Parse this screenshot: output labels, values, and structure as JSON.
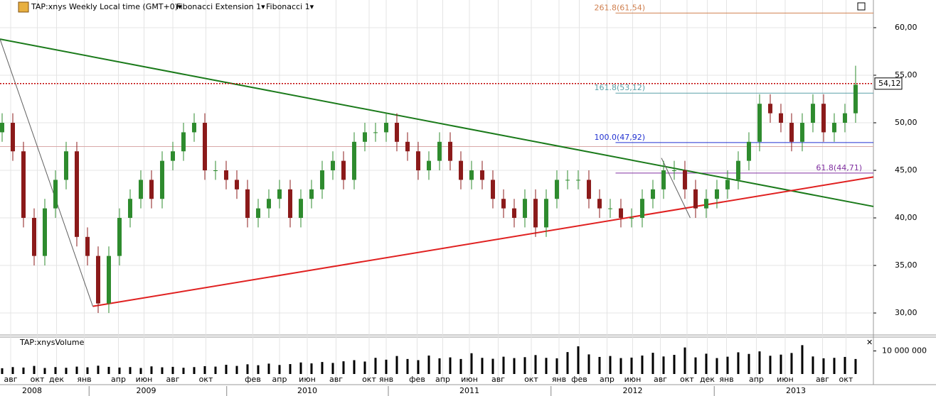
{
  "chart_data": {
    "type": "candlestick",
    "title": "TAP:xnys Weekly Local time (GMT+0)▾",
    "indicators": [
      "Fibonacci Extension 1▾",
      "Fibonacci 1▾"
    ],
    "volume_title": "TAP:xnysVolume",
    "xlim": [
      -0.2,
      81.67
    ],
    "ylim": [
      27.69,
      62.91
    ],
    "yticks": [
      {
        "value": 30,
        "label": "30,00"
      },
      {
        "value": 35,
        "label": "35,00"
      },
      {
        "value": 40,
        "label": "40,00"
      },
      {
        "value": 45,
        "label": "45,00"
      },
      {
        "value": 50,
        "label": "50,00"
      },
      {
        "value": 55,
        "label": "55,00"
      },
      {
        "value": 60,
        "label": "60,00"
      }
    ],
    "xticks": [
      {
        "value": 0.8,
        "label": "авг"
      },
      {
        "value": 3.3,
        "label": "окт"
      },
      {
        "value": 5.1,
        "label": "дек"
      },
      {
        "value": 7.7,
        "label": "янв"
      },
      {
        "value": 10.9,
        "label": "апр"
      },
      {
        "value": 13.3,
        "label": "июн"
      },
      {
        "value": 16,
        "label": "авг"
      },
      {
        "value": 19.1,
        "label": "окт"
      },
      {
        "value": 23.5,
        "label": "фев"
      },
      {
        "value": 26,
        "label": "апр"
      },
      {
        "value": 28.6,
        "label": "июн"
      },
      {
        "value": 31.3,
        "label": "авг"
      },
      {
        "value": 34.4,
        "label": "окт"
      },
      {
        "value": 36,
        "label": "янв"
      },
      {
        "value": 38.9,
        "label": "фев"
      },
      {
        "value": 41.3,
        "label": "апр"
      },
      {
        "value": 43.8,
        "label": "июн"
      },
      {
        "value": 46.5,
        "label": "авг"
      },
      {
        "value": 49.6,
        "label": "окт"
      },
      {
        "value": 52.2,
        "label": "янв"
      },
      {
        "value": 54.1,
        "label": "фев"
      },
      {
        "value": 56.7,
        "label": "апр"
      },
      {
        "value": 59.1,
        "label": "июн"
      },
      {
        "value": 61.7,
        "label": "авг"
      },
      {
        "value": 64.2,
        "label": "окт"
      },
      {
        "value": 66.1,
        "label": "дек"
      },
      {
        "value": 67.9,
        "label": "янв"
      },
      {
        "value": 70.7,
        "label": "апр"
      },
      {
        "value": 73.4,
        "label": "июн"
      },
      {
        "value": 76.9,
        "label": "авг"
      },
      {
        "value": 79.1,
        "label": "окт"
      }
    ],
    "years": [
      {
        "value": 2.8,
        "label": "2008"
      },
      {
        "value": 13.5,
        "label": "2009"
      },
      {
        "value": 28.6,
        "label": "2010"
      },
      {
        "value": 43.8,
        "label": "2011"
      },
      {
        "value": 59.1,
        "label": "2012"
      },
      {
        "value": 74.4,
        "label": "2013"
      }
    ],
    "up_color": "#2e8b2e",
    "down_color": "#8b1a1a",
    "open": [
      49,
      50,
      47,
      40,
      36,
      41,
      44,
      47,
      38,
      36,
      31,
      36,
      40,
      42,
      44,
      42,
      46,
      47,
      49,
      50,
      45,
      45,
      44,
      43,
      40,
      41,
      42,
      43,
      40,
      42,
      43,
      45,
      46,
      44,
      48,
      49,
      49,
      50,
      48,
      47,
      45,
      46,
      48,
      46,
      44,
      45,
      44,
      42,
      41,
      40,
      42,
      39,
      42,
      44,
      44,
      44,
      42,
      41,
      41,
      40,
      40,
      42,
      43,
      45,
      45,
      43,
      41,
      42,
      43,
      44,
      46,
      48,
      52,
      51,
      50,
      48,
      50,
      52,
      49,
      50,
      51
    ],
    "high": [
      51,
      51,
      48,
      41,
      42,
      45,
      48,
      48,
      39,
      37,
      37,
      41,
      43,
      45,
      45,
      47,
      48,
      50,
      51,
      51,
      46,
      46,
      45,
      44,
      42,
      43,
      44,
      44,
      43,
      44,
      46,
      47,
      47,
      49,
      50,
      50,
      51,
      51,
      49,
      48,
      47,
      49,
      49,
      47,
      46,
      46,
      45,
      43,
      42,
      43,
      43,
      43,
      45,
      45,
      45,
      45,
      43,
      42,
      42,
      41,
      43,
      44,
      46,
      46,
      46,
      44,
      43,
      44,
      45,
      47,
      49,
      53,
      53,
      52,
      51,
      51,
      53,
      53,
      51,
      52,
      56
    ],
    "low": [
      48,
      46,
      39,
      35,
      35,
      40,
      43,
      37,
      35,
      30,
      30,
      35,
      39,
      41,
      41,
      41,
      45,
      46,
      48,
      44,
      44,
      43,
      42,
      39,
      39,
      40,
      41,
      39,
      39,
      41,
      42,
      44,
      43,
      43,
      47,
      48,
      48,
      47,
      46,
      44,
      44,
      45,
      45,
      43,
      43,
      43,
      41,
      40,
      39,
      39,
      38,
      38,
      41,
      43,
      43,
      41,
      40,
      40,
      39,
      39,
      39,
      41,
      42,
      44,
      42,
      40,
      40,
      41,
      42,
      43,
      45,
      47,
      50,
      49,
      47,
      47,
      49,
      48,
      48,
      49,
      50
    ],
    "close": [
      50,
      47,
      40,
      36,
      41,
      44,
      47,
      38,
      36,
      31,
      36,
      40,
      42,
      44,
      42,
      46,
      47,
      49,
      50,
      45,
      45,
      44,
      43,
      40,
      41,
      42,
      43,
      40,
      42,
      43,
      45,
      46,
      44,
      48,
      49,
      49,
      50,
      48,
      47,
      45,
      46,
      48,
      46,
      44,
      45,
      44,
      42,
      41,
      40,
      42,
      39,
      42,
      44,
      44,
      44,
      42,
      41,
      41,
      40,
      40,
      42,
      43,
      45,
      45,
      43,
      41,
      42,
      43,
      44,
      46,
      48,
      52,
      51,
      50,
      48,
      50,
      52,
      49,
      50,
      51,
      54
    ],
    "volume": {
      "ylim": [
        0,
        16000000
      ],
      "yticks": [
        {
          "value": 10000000,
          "label": "10 000 000"
        }
      ],
      "color": "#000000",
      "values": [
        2500000,
        3000000,
        2800000,
        3500000,
        2600000,
        3000000,
        2700000,
        3200000,
        2900000,
        3600000,
        3100000,
        2800000,
        3000000,
        2600000,
        3300000,
        2900000,
        3100000,
        2700000,
        3000000,
        3400000,
        3200000,
        4000000,
        3500000,
        4200000,
        3800000,
        4500000,
        3900000,
        4300000,
        5000000,
        4600000,
        5200000,
        4800000,
        5500000,
        6000000,
        5400000,
        7000000,
        6200000,
        7800000,
        6500000,
        6000000,
        8000000,
        6800000,
        7200000,
        6500000,
        9000000,
        7000000,
        6600000,
        7500000,
        6900000,
        7300000,
        8200000,
        7000000,
        6800000,
        9500000,
        12000000,
        8500000,
        7400000,
        7800000,
        6900000,
        7100000,
        8000000,
        9200000,
        7600000,
        8300000,
        11500000,
        7200000,
        8800000,
        6900000,
        7500000,
        9400000,
        8700000,
        9800000,
        7900000,
        8400000,
        9100000,
        12500000,
        7600000,
        6800000,
        7000000,
        7400000,
        6500000
      ]
    },
    "trend_lines": [
      {
        "color": "#1a7a1a",
        "points": [
          [
            -0.2,
            58.8
          ],
          [
            81.67,
            41.2
          ]
        ]
      },
      {
        "color": "#e02020",
        "points": [
          [
            8.5,
            30.7
          ],
          [
            81.67,
            44.3
          ]
        ]
      },
      {
        "color": "#606060",
        "points": [
          [
            -0.2,
            58.8
          ],
          [
            8.5,
            30.7
          ]
        ]
      },
      {
        "color": "#606060",
        "points": [
          [
            61.8,
            46.3
          ],
          [
            64.5,
            40
          ]
        ]
      }
    ],
    "fib_levels": [
      {
        "value": 61.54,
        "label": "261.8(61,54)",
        "color": "#d08050",
        "from": 57.5
      },
      {
        "value": 53.12,
        "label": "161.8(53,12)",
        "color": "#5aa0a8",
        "from": 57.5
      },
      {
        "value": 47.92,
        "label": "100.0(47,92)",
        "color": "#2030d0",
        "from": 57.5
      },
      {
        "value": 44.71,
        "label": "61.8(44,71)",
        "color": "#8030a0",
        "from": 57.5
      }
    ],
    "ref_line": {
      "value": 47.5,
      "color": "#d8a8a8"
    },
    "last_price": {
      "value": 54.12,
      "label": "54,12",
      "color": "#c00000"
    }
  }
}
